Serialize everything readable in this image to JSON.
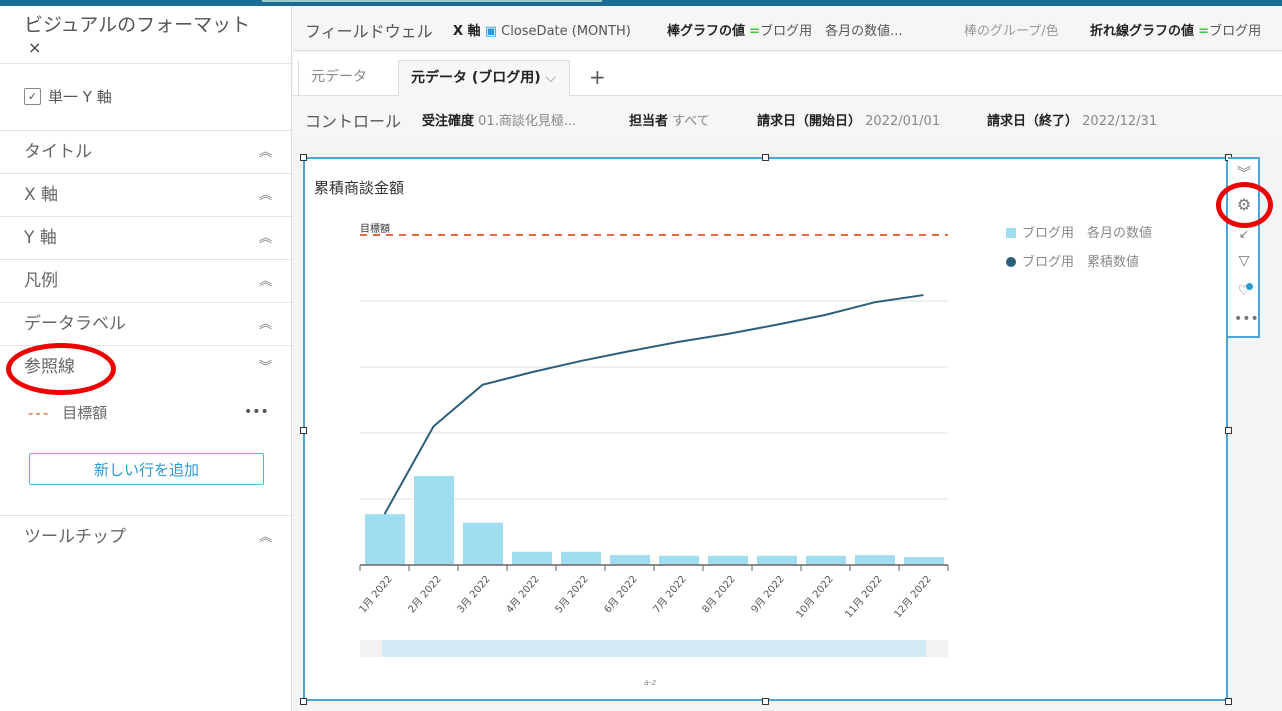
{
  "format_panel": {
    "title": "ビジュアルのフォーマット",
    "close": "×",
    "single_y_axis": {
      "label": "単一 Y 軸",
      "checked": true
    },
    "sections": [
      {
        "label": "タイトル",
        "state": "collapsed"
      },
      {
        "label": "X 軸",
        "state": "collapsed"
      },
      {
        "label": "Y 軸",
        "state": "collapsed"
      },
      {
        "label": "凡例",
        "state": "collapsed"
      },
      {
        "label": "データラベル",
        "state": "collapsed"
      },
      {
        "label": "参照線",
        "state": "expanded"
      },
      {
        "label": "ツールチップ",
        "state": "collapsed"
      }
    ],
    "reference_line": {
      "dash": "---",
      "label": "目標額",
      "menu": "•••"
    },
    "add_button": "新しい行を追加"
  },
  "field_wells": {
    "label": "フィールドウェル",
    "x_axis": {
      "label": "X 軸",
      "value": "CloseDate (MONTH)"
    },
    "bar_values": {
      "label": "棒グラフの値",
      "value": "ブログ用　各月の数値..."
    },
    "bar_group": {
      "label": "棒のグループ/色"
    },
    "line_values": {
      "label": "折れ線グラフの値",
      "value": "ブログ用"
    }
  },
  "sheet_tabs": [
    {
      "label": "元データ"
    },
    {
      "label": "元データ (ブログ用)",
      "active": true
    }
  ],
  "add_tab": "+",
  "controls": {
    "label": "コントロール",
    "items": [
      {
        "label": "受注確度",
        "value": "01.商談化見極..."
      },
      {
        "label": "担当者",
        "value": "すべて"
      },
      {
        "label": "請求日（開始日）",
        "value": "2022/01/01"
      },
      {
        "label": "請求日（終了）",
        "value": "2022/12/31"
      }
    ]
  },
  "visual_tools": [
    "chevrons-down-icon",
    "gear-icon",
    "collapse-icon",
    "filter-icon",
    "insight-bulb-icon",
    "more-icon"
  ],
  "colors": {
    "bar": "#a1ddf0",
    "line": "#2c5f7c",
    "reference": "#e8663d",
    "selection": "#4aa6d8",
    "highlight": "#e00000"
  },
  "chart_data": {
    "type": "bar+line",
    "title": "累積商談金額",
    "categories": [
      "1月 2022",
      "2月 2022",
      "3月 2022",
      "4月 2022",
      "5月 2022",
      "6月 2022",
      "7月 2022",
      "8月 2022",
      "9月 2022",
      "10月 2022",
      "11月 2022",
      "12月 2022"
    ],
    "series": [
      {
        "name": "ブログ用　各月の数値",
        "type": "bar",
        "values": [
          0.77,
          1.35,
          0.64,
          0.2,
          0.2,
          0.15,
          0.14,
          0.14,
          0.14,
          0.14,
          0.15,
          0.12
        ]
      },
      {
        "name": "ブログ用　累積数値",
        "type": "line",
        "values": [
          0.77,
          2.1,
          2.73,
          2.92,
          3.09,
          3.24,
          3.38,
          3.5,
          3.64,
          3.79,
          3.98,
          4.09
        ]
      }
    ],
    "reference_line": {
      "label": "目標額",
      "value": 5.0
    },
    "ylim": [
      0,
      5
    ],
    "y_tick_labels": false,
    "grid": true,
    "legend": "top-right",
    "sort_icon": "a-z"
  }
}
